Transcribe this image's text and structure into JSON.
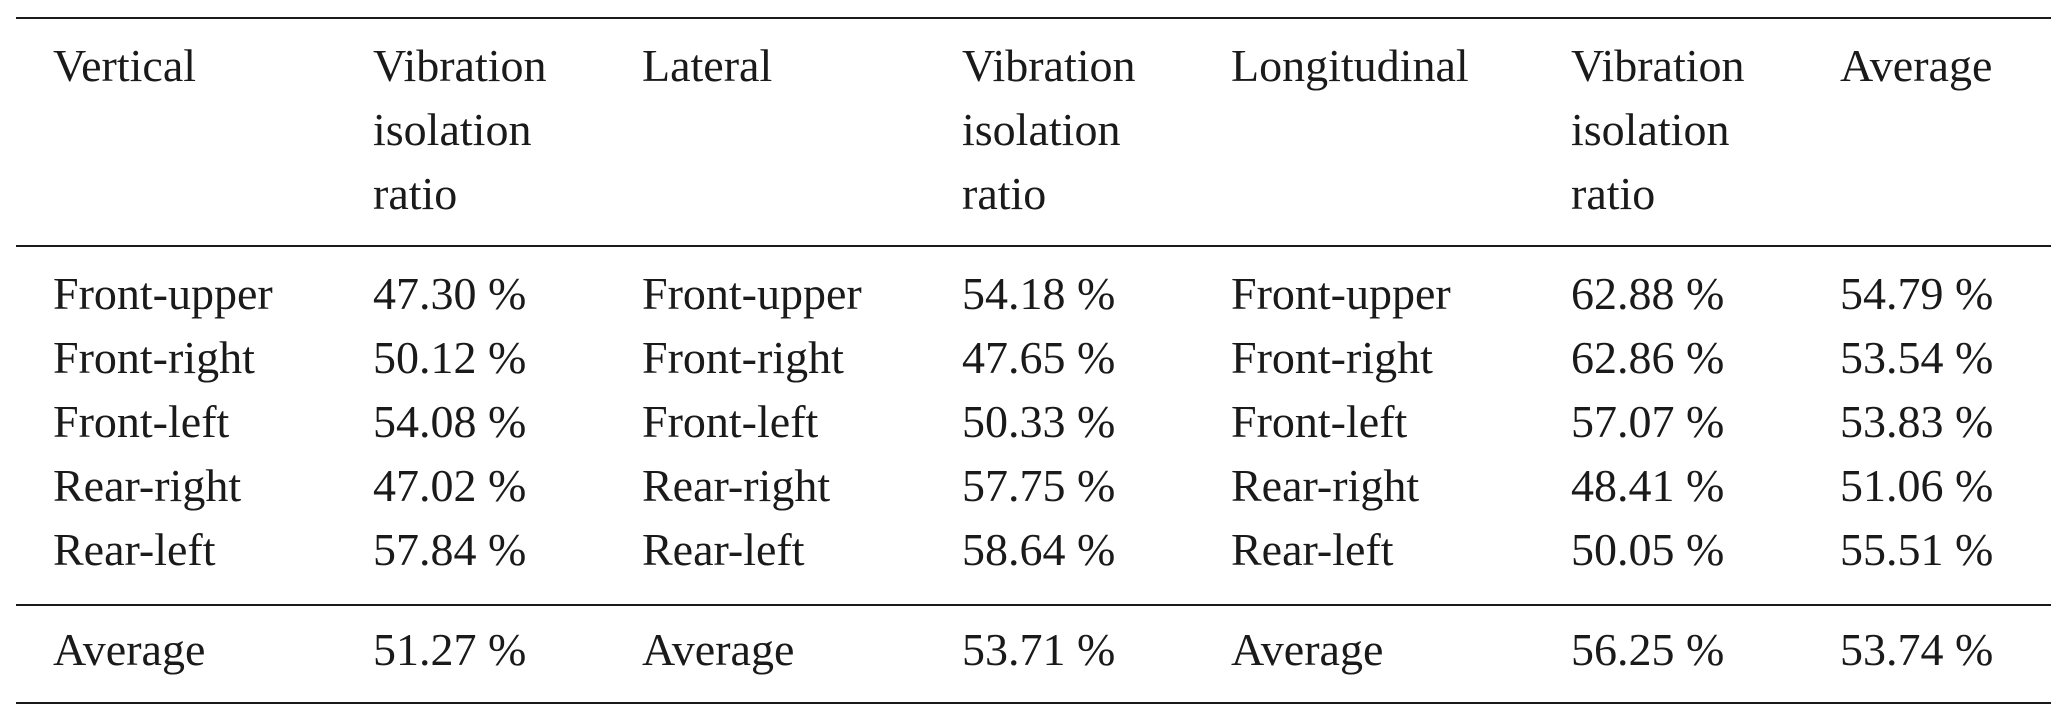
{
  "table": {
    "header": [
      "Vertical",
      "Vibration isolation ratio",
      "Lateral",
      "Vibration isolation ratio",
      "Longitudinal",
      "Vibration isolation ratio",
      "Average"
    ],
    "rows": [
      [
        "Front-upper",
        "47.30 %",
        "Front-upper",
        "54.18 %",
        "Front-upper",
        "62.88 %",
        "54.79 %"
      ],
      [
        "Front-right",
        "50.12 %",
        "Front-right",
        "47.65 %",
        "Front-right",
        "62.86 %",
        "53.54 %"
      ],
      [
        "Front-left",
        "54.08 %",
        "Front-left",
        "50.33 %",
        "Front-left",
        "57.07 %",
        "53.83 %"
      ],
      [
        "Rear-right",
        "47.02 %",
        "Rear-right",
        "57.75 %",
        "Rear-right",
        "48.41 %",
        "51.06 %"
      ],
      [
        "Rear-left",
        "57.84 %",
        "Rear-left",
        "58.64 %",
        "Rear-left",
        "50.05 %",
        "55.51 %"
      ]
    ],
    "footer": [
      "Average",
      "51.27 %",
      "Average",
      "53.71 %",
      "Average",
      "56.25 %",
      "53.74 %"
    ]
  }
}
